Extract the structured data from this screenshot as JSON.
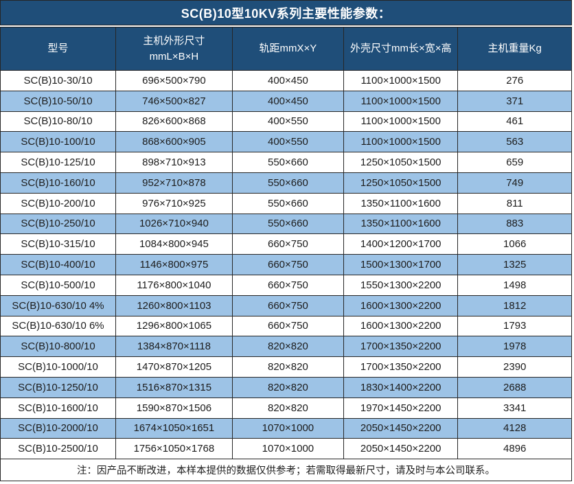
{
  "title": "SC(B)10型10KV系列主要性能参数：",
  "colors": {
    "header_bg": "#1F4E79",
    "row_alt_bg": "#9DC3E6",
    "row_bg": "#FFFFFF",
    "border": "#262626",
    "header_text": "#FFFFFF",
    "body_text": "#1C1C1C"
  },
  "table": {
    "headers": {
      "model": "型号",
      "main_dims_line1": "主机外形尺寸",
      "main_dims_line2": "mmL×B×H",
      "rail": "轨距mmX×Y",
      "shell": "外壳尺寸mm长×宽×高",
      "weight": "主机重量Kg"
    },
    "column_keys": [
      "model",
      "main-dimensions",
      "rail-gauge",
      "shell-size",
      "weight"
    ],
    "rows": [
      [
        "SC(B)10-30/10",
        "696×500×790",
        "400×450",
        "1100×1000×1500",
        "276"
      ],
      [
        "SC(B)10-50/10",
        "746×500×827",
        "400×450",
        "1100×1000×1500",
        "371"
      ],
      [
        "SC(B)10-80/10",
        "826×600×868",
        "400×550",
        "1100×1000×1500",
        "461"
      ],
      [
        "SC(B)10-100/10",
        "868×600×905",
        "400×550",
        "1100×1000×1500",
        "563"
      ],
      [
        "SC(B)10-125/10",
        "898×710×913",
        "550×660",
        "1250×1050×1500",
        "659"
      ],
      [
        "SC(B)10-160/10",
        "952×710×878",
        "550×660",
        "1250×1050×1500",
        "749"
      ],
      [
        "SC(B)10-200/10",
        "976×710×925",
        "550×660",
        "1350×1100×1600",
        "811"
      ],
      [
        "SC(B)10-250/10",
        "1026×710×940",
        "550×660",
        "1350×1100×1600",
        "883"
      ],
      [
        "SC(B)10-315/10",
        "1084×800×945",
        "660×750",
        "1400×1200×1700",
        "1066"
      ],
      [
        "SC(B)10-400/10",
        "1146×800×975",
        "660×750",
        "1500×1300×1700",
        "1325"
      ],
      [
        "SC(B)10-500/10",
        "1176×800×1040",
        "660×750",
        "1550×1300×2200",
        "1498"
      ],
      [
        "SC(B)10-630/10 4%",
        "1260×800×1103",
        "660×750",
        "1600×1300×2200",
        "1812"
      ],
      [
        "SC(B)10-630/10 6%",
        "1296×800×1065",
        "660×750",
        "1600×1300×2200",
        "1793"
      ],
      [
        "SC(B)10-800/10",
        "1384×870×1118",
        "820×820",
        "1700×1350×2200",
        "1978"
      ],
      [
        "SC(B)10-1000/10",
        "1470×870×1205",
        "820×820",
        "1700×1350×2200",
        "2390"
      ],
      [
        "SC(B)10-1250/10",
        "1516×870×1315",
        "820×820",
        "1830×1400×2200",
        "2688"
      ],
      [
        "SC(B)10-1600/10",
        "1590×870×1506",
        "820×820",
        "1970×1450×2200",
        "3341"
      ],
      [
        "SC(B)10-2000/10",
        "1674×1050×1651",
        "1070×1000",
        "2050×1450×2200",
        "4128"
      ],
      [
        "SC(B)10-2500/10",
        "1756×1050×1768",
        "1070×1000",
        "2050×1450×2200",
        "4896"
      ]
    ]
  },
  "footer_note": "注：因产品不断改进，本样本提供的数据仅供参考；若需取得最新尺寸，请及时与本公司联系。"
}
